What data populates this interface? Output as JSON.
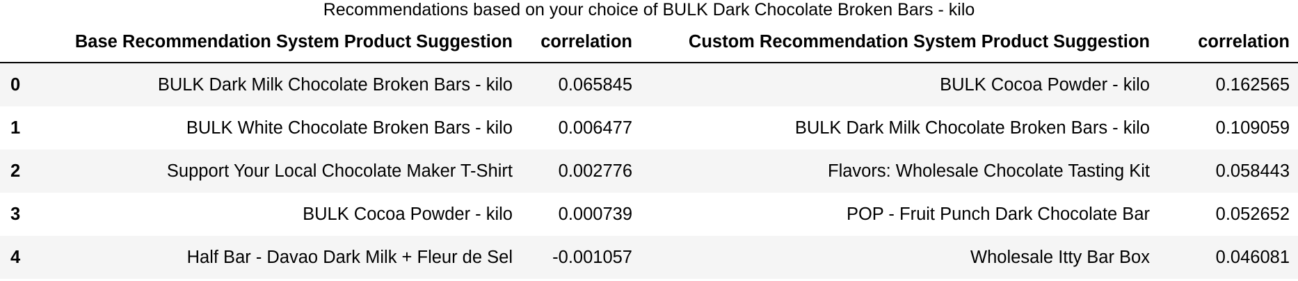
{
  "caption": "Recommendations based on your choice of BULK Dark Chocolate Broken Bars - kilo",
  "table": {
    "columns": [
      "",
      "Base Recommendation System Product Suggestion",
      "correlation",
      "Custom Recommendation System Product Suggestion",
      "correlation"
    ],
    "rows": [
      [
        "0",
        "BULK Dark Milk Chocolate Broken Bars - kilo",
        "0.065845",
        "BULK Cocoa Powder - kilo",
        "0.162565"
      ],
      [
        "1",
        "BULK White Chocolate Broken Bars - kilo",
        "0.006477",
        "BULK Dark Milk Chocolate Broken Bars - kilo",
        "0.109059"
      ],
      [
        "2",
        "Support Your Local Chocolate Maker T-Shirt",
        "0.002776",
        "Flavors: Wholesale Chocolate Tasting Kit",
        "0.058443"
      ],
      [
        "3",
        "BULK Cocoa Powder - kilo",
        "0.000739",
        "POP - Fruit Punch Dark Chocolate Bar",
        "0.052652"
      ],
      [
        "4",
        "Half Bar - Davao Dark Milk + Fleur de Sel",
        "-0.001057",
        "Wholesale Itty Bar Box",
        "0.046081"
      ]
    ]
  }
}
